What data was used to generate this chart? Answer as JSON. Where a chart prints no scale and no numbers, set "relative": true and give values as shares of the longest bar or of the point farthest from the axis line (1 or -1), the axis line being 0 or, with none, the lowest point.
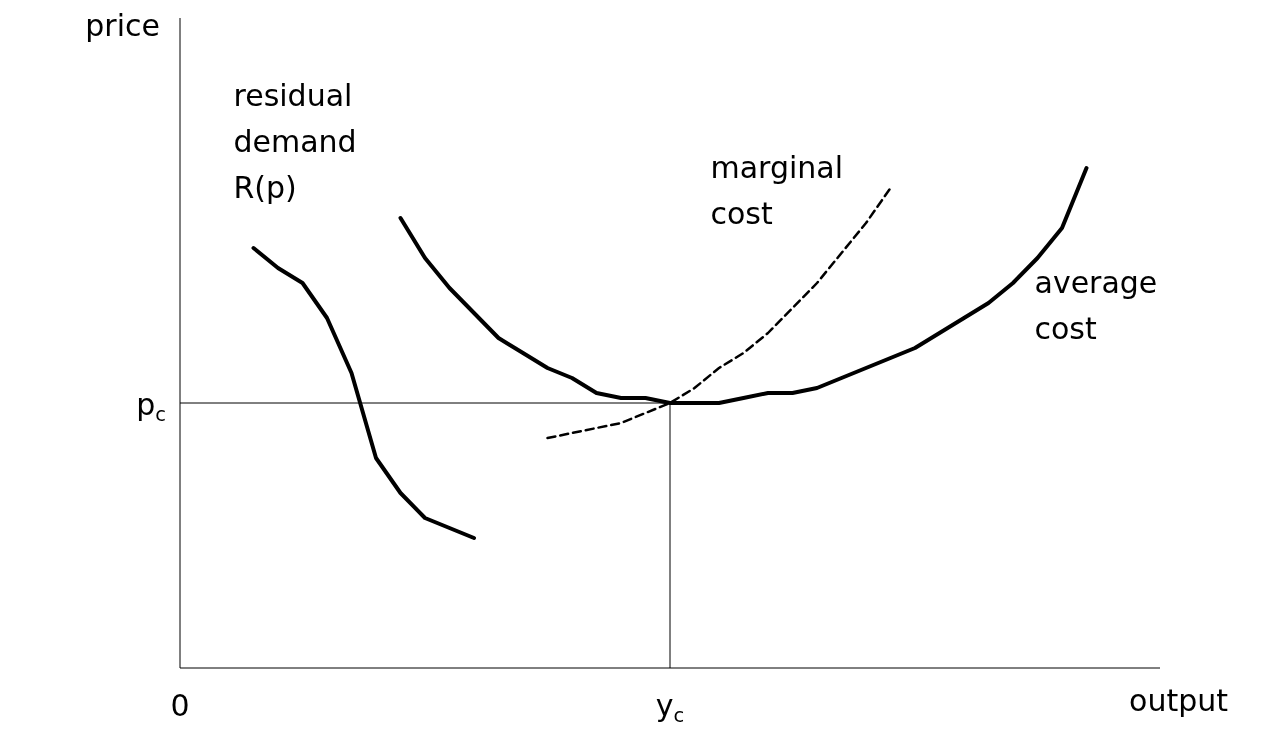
{
  "chart_data": {
    "type": "line",
    "relative": true,
    "xlabel": "output",
    "ylabel": "price",
    "grid": false,
    "marker": "none",
    "categories": [
      "0",
      null,
      null,
      null,
      null,
      null,
      null,
      null,
      null,
      null,
      null,
      null,
      null,
      null,
      null,
      null,
      null,
      null,
      null,
      null,
      "y$_{c}$",
      null,
      null,
      null,
      null,
      null,
      null,
      null,
      null,
      null,
      null,
      null,
      null,
      null,
      null,
      null,
      null,
      null,
      null,
      null,
      null
    ],
    "series": [
      {
        "name": "residual demand R(p)",
        "color": "#000000",
        "line_style": "solid",
        "values": [
          null,
          null,
          null,
          0.84,
          0.8,
          0.77,
          0.7,
          0.59,
          0.42,
          0.35,
          0.3,
          0.28,
          0.26,
          null,
          null,
          null,
          null,
          null,
          null,
          null,
          null,
          null,
          null,
          null,
          null,
          null,
          null,
          null,
          null,
          null,
          null,
          null,
          null,
          null,
          null,
          null,
          null,
          null,
          null,
          null,
          null
        ]
      },
      {
        "name": "marginal cost",
        "color": "#000000",
        "line_style": "dashed",
        "values": [
          null,
          null,
          null,
          null,
          null,
          null,
          null,
          null,
          null,
          null,
          null,
          null,
          null,
          null,
          null,
          0.46,
          0.47,
          0.48,
          0.49,
          0.51,
          0.53,
          0.56,
          0.6,
          0.63,
          0.67,
          0.72,
          0.77,
          0.83,
          0.89,
          0.96,
          null,
          null,
          null,
          null,
          null,
          null,
          null,
          null,
          null,
          null,
          null
        ]
      },
      {
        "name": "average cost",
        "color": "#000000",
        "line_style": "solid",
        "values": [
          null,
          null,
          null,
          null,
          null,
          null,
          null,
          null,
          null,
          0.9,
          0.82,
          0.76,
          0.71,
          0.66,
          0.63,
          0.6,
          0.58,
          0.55,
          0.54,
          0.54,
          0.53,
          0.53,
          0.53,
          0.54,
          0.55,
          0.55,
          0.56,
          0.58,
          0.6,
          0.62,
          0.64,
          0.67,
          0.7,
          0.73,
          0.77,
          0.82,
          0.88,
          1.0,
          null,
          null,
          null
        ]
      }
    ],
    "ref_lines": [
      {
        "axis": "y",
        "value": 0.53,
        "label": "p$_{c}$"
      },
      {
        "axis": "x",
        "value": "y$_{c}$"
      }
    ]
  }
}
